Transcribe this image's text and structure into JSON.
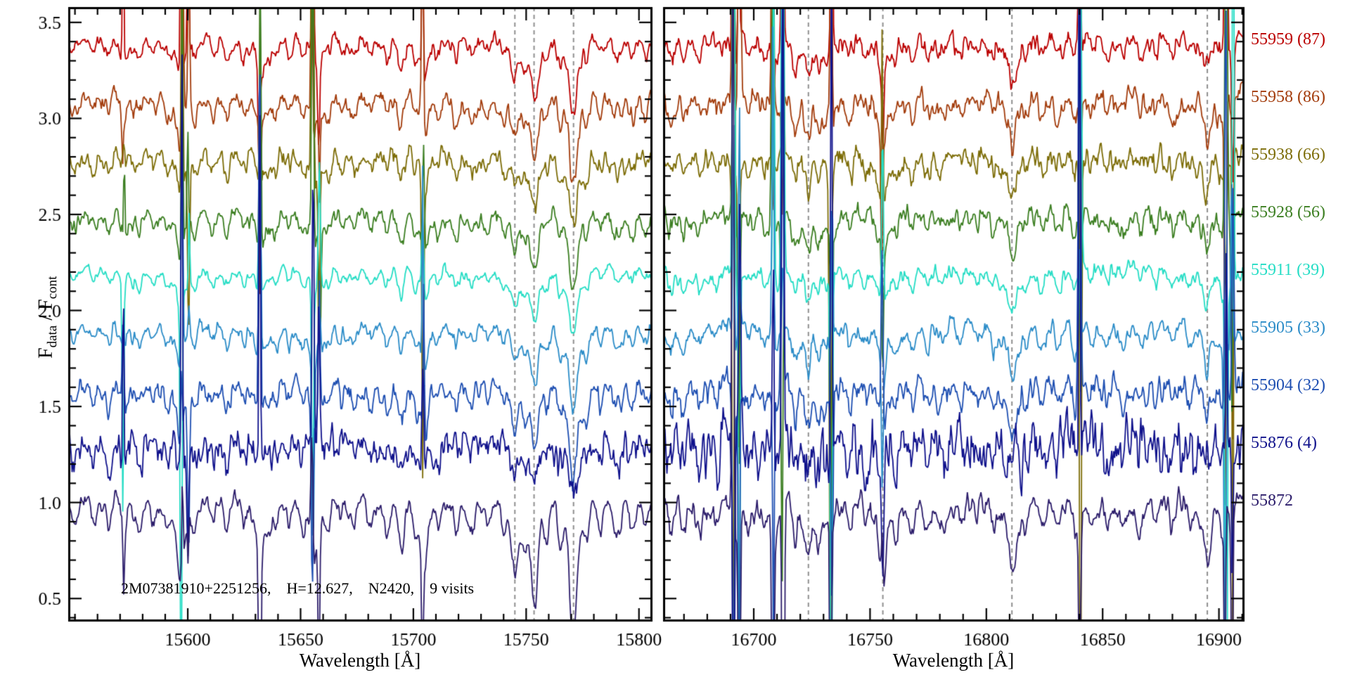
{
  "chart_data": {
    "type": "line",
    "description": "Stacked APOGEE visit spectra (flux vs wavelength), two wavelength windows, one spectrum per visit offset vertically, MJD (visit) labels at right",
    "xlabel": "Wavelength [Å]",
    "ylabel": {
      "f1": "F",
      "s1": "data",
      "f2": " / F",
      "s2": "cont"
    },
    "ylim": [
      0.38,
      3.58
    ],
    "yticks": [
      0.5,
      1.0,
      1.5,
      2.0,
      2.5,
      3.0,
      3.5
    ],
    "y_minor_step": 0.1,
    "annotation": "2M07381910+2251256,    H=12.627,    N2420,    9 visits",
    "legend_position": "right-outside",
    "colors": {
      "frame": "#000000",
      "dashed_marker": "#8f8f8f",
      "background": "#ffffff"
    },
    "panels": [
      {
        "name": "left",
        "xlabel": "Wavelength [Å]",
        "xlim": [
          15547,
          15806
        ],
        "xticks": [
          15600,
          15650,
          15700,
          15750,
          15800
        ],
        "x_minor_step": 10,
        "dashed_lines": [
          15745,
          15753.5,
          15771
        ],
        "sky_spikes": [
          [
            15571.5,
            1.0
          ],
          [
            15597.3,
            1.9
          ],
          [
            15600.3,
            1.2
          ],
          [
            15631.8,
            2.1
          ],
          [
            15655.3,
            2.3
          ],
          [
            15658.3,
            1.1
          ],
          [
            15704.3,
            1.3
          ]
        ],
        "strong_lines": [
          [
            15558,
            0.06,
            1.0
          ],
          [
            15565,
            0.08,
            1.0
          ],
          [
            15572,
            0.09,
            1.0
          ],
          [
            15578,
            0.07,
            0.9
          ],
          [
            15585,
            0.06,
            1.0
          ],
          [
            15591,
            0.07,
            1.0
          ],
          [
            15597,
            0.16,
            1.1
          ],
          [
            15603,
            0.09,
            1.0
          ],
          [
            15611,
            0.07,
            1.0
          ],
          [
            15617,
            0.06,
            0.9
          ],
          [
            15625,
            0.07,
            1.0
          ],
          [
            15632,
            0.14,
            1.1
          ],
          [
            15639,
            0.08,
            1.0
          ],
          [
            15645,
            0.06,
            0.9
          ],
          [
            15651,
            0.08,
            1.0
          ],
          [
            15656,
            0.12,
            1.0
          ],
          [
            15662,
            0.08,
            1.0
          ],
          [
            15668,
            0.06,
            0.9
          ],
          [
            15674,
            0.07,
            1.0
          ],
          [
            15681,
            0.08,
            1.1
          ],
          [
            15688,
            0.06,
            0.9
          ],
          [
            15695,
            0.1,
            1.1
          ],
          [
            15701,
            0.07,
            1.0
          ],
          [
            15705,
            0.13,
            1.1
          ],
          [
            15711,
            0.07,
            1.0
          ],
          [
            15719,
            0.08,
            1.0
          ],
          [
            15726,
            0.06,
            0.9
          ],
          [
            15733,
            0.07,
            1.0
          ],
          [
            15740,
            0.07,
            1.0
          ],
          [
            15745,
            0.13,
            1.2
          ],
          [
            15749.5,
            0.08,
            0.9
          ],
          [
            15753.5,
            0.19,
            1.3
          ],
          [
            15759,
            0.08,
            1.0
          ],
          [
            15765,
            0.09,
            1.0
          ],
          [
            15771,
            0.26,
            1.5
          ],
          [
            15777,
            0.08,
            1.0
          ],
          [
            15783,
            0.07,
            1.0
          ],
          [
            15790,
            0.06,
            0.9
          ],
          [
            15797,
            0.07,
            1.0
          ],
          [
            15803,
            0.06,
            0.9
          ]
        ]
      },
      {
        "name": "right",
        "xlabel": "Wavelength [Å]",
        "xlim": [
          16661,
          16911
        ],
        "xticks": [
          16700,
          16750,
          16800,
          16850,
          16900
        ],
        "x_minor_step": 10,
        "dashed_lines": [
          16723.5,
          16755.5,
          16811,
          16895
        ],
        "sky_spikes": [
          [
            16691.3,
            3.3
          ],
          [
            16693.8,
            2.7
          ],
          [
            16708.3,
            3.0
          ],
          [
            16712.3,
            3.2
          ],
          [
            16733.3,
            3.2
          ],
          [
            16755.3,
            0.8
          ],
          [
            16840.3,
            2.9
          ],
          [
            16902.8,
            3.3
          ],
          [
            16905.8,
            2.8
          ]
        ],
        "strong_lines": [
          [
            16664,
            0.06,
            1.0
          ],
          [
            16670,
            0.07,
            1.0
          ],
          [
            16677,
            0.08,
            1.0
          ],
          [
            16684,
            0.06,
            0.9
          ],
          [
            16692,
            0.11,
            1.1
          ],
          [
            16698,
            0.06,
            0.9
          ],
          [
            16705,
            0.07,
            1.0
          ],
          [
            16710,
            0.1,
            1.0
          ],
          [
            16717,
            0.07,
            1.0
          ],
          [
            16723.5,
            0.13,
            1.2
          ],
          [
            16728,
            0.07,
            1.0
          ],
          [
            16734,
            0.09,
            1.0
          ],
          [
            16741,
            0.06,
            0.9
          ],
          [
            16748,
            0.07,
            1.0
          ],
          [
            16755.5,
            0.16,
            1.3
          ],
          [
            16761,
            0.08,
            1.0
          ],
          [
            16768,
            0.06,
            0.9
          ],
          [
            16775,
            0.07,
            1.0
          ],
          [
            16782,
            0.06,
            0.9
          ],
          [
            16789,
            0.07,
            1.0
          ],
          [
            16796,
            0.06,
            0.9
          ],
          [
            16803,
            0.07,
            1.0
          ],
          [
            16811,
            0.14,
            1.3
          ],
          [
            16817,
            0.07,
            1.0
          ],
          [
            16824,
            0.06,
            0.9
          ],
          [
            16831,
            0.07,
            1.0
          ],
          [
            16838,
            0.08,
            1.0
          ],
          [
            16845,
            0.06,
            0.9
          ],
          [
            16852,
            0.07,
            1.0
          ],
          [
            16859,
            0.06,
            0.9
          ],
          [
            16866,
            0.07,
            1.0
          ],
          [
            16873,
            0.06,
            0.9
          ],
          [
            16880,
            0.07,
            1.0
          ],
          [
            16887,
            0.06,
            0.9
          ],
          [
            16895,
            0.13,
            1.3
          ],
          [
            16901,
            0.08,
            1.0
          ]
        ]
      }
    ],
    "series": [
      {
        "label": "55959 (87)",
        "mjd": "55959",
        "visit": "87",
        "color": "#bb0000",
        "offset": 3.4,
        "noise": [
          0.028,
          0.036
        ],
        "depth_scale": 1.0,
        "spike_scale": 1.0,
        "seed": 11
      },
      {
        "label": "55958 (86)",
        "mjd": "55958",
        "visit": "86",
        "color": "#a33c0c",
        "offset": 3.1,
        "noise": [
          0.032,
          0.04
        ],
        "depth_scale": 1.05,
        "spike_scale": 0.9,
        "seed": 22
      },
      {
        "label": "55938 (66)",
        "mjd": "55938",
        "visit": "66",
        "color": "#7d6d08",
        "offset": 2.8,
        "noise": [
          0.034,
          0.044
        ],
        "depth_scale": 1.0,
        "spike_scale": 1.1,
        "seed": 33
      },
      {
        "label": "55928 (56)",
        "mjd": "55928",
        "visit": "56",
        "color": "#3c7f22",
        "offset": 2.5,
        "noise": [
          0.03,
          0.038
        ],
        "depth_scale": 1.0,
        "spike_scale": 0.8,
        "seed": 44
      },
      {
        "label": "55911 (39)",
        "mjd": "55911",
        "visit": "39",
        "color": "#25ddc5",
        "offset": 2.2,
        "noise": [
          0.02,
          0.028
        ],
        "depth_scale": 0.85,
        "spike_scale": 1.2,
        "seed": 55
      },
      {
        "label": "55905 (33)",
        "mjd": "55905",
        "visit": "33",
        "color": "#2b8cc8",
        "offset": 1.9,
        "noise": [
          0.026,
          0.034
        ],
        "depth_scale": 1.0,
        "spike_scale": 0.8,
        "seed": 66
      },
      {
        "label": "55904 (32)",
        "mjd": "55904",
        "visit": "32",
        "color": "#1e4fb2",
        "offset": 1.6,
        "noise": [
          0.034,
          0.046
        ],
        "depth_scale": 1.15,
        "spike_scale": 1.1,
        "seed": 77
      },
      {
        "label": "55876 (4)",
        "mjd": "55876",
        "visit": "4",
        "color": "#10128c",
        "offset": 1.3,
        "noise": [
          0.06,
          0.1
        ],
        "depth_scale": 0.65,
        "spike_scale": 1.2,
        "seed": 88
      },
      {
        "label": "55872",
        "mjd": "55872",
        "visit": "",
        "color": "#2c1d6b",
        "offset": 1.0,
        "noise": [
          0.028,
          0.04
        ],
        "depth_scale": 1.7,
        "spike_scale": 1.0,
        "seed": 99
      }
    ]
  }
}
